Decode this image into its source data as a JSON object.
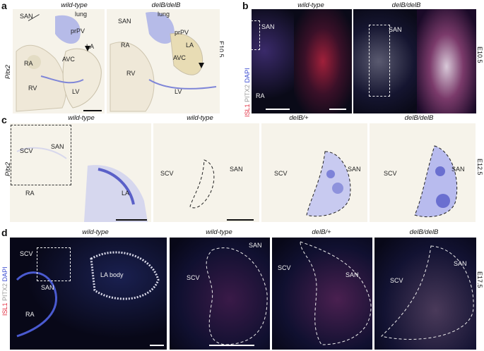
{
  "panels": {
    "a": {
      "letter": "a",
      "stain": "Pitx2",
      "stage": "E10.5",
      "left": {
        "genotype": "wild-type",
        "labels": [
          "SAN",
          "lung",
          "prPV",
          "LA",
          "RA",
          "AVC",
          "RV",
          "LV"
        ]
      },
      "right": {
        "genotype": "delB/delB",
        "labels": [
          "SAN",
          "lung",
          "prPV",
          "LA",
          "RA",
          "AVC",
          "RV",
          "LV"
        ]
      }
    },
    "b": {
      "letter": "b",
      "stage": "E10.5",
      "channels": {
        "c1": "ISL1",
        "c2": "PITX2",
        "c3": "DAPI"
      },
      "left": {
        "genotype": "wild-type",
        "labels": [
          "SAN",
          "RA"
        ]
      },
      "right": {
        "genotype": "delB/delB",
        "labels": [
          "SAN"
        ]
      }
    },
    "c": {
      "letter": "c",
      "stain": "Pitx2",
      "stage": "E12.5",
      "p1": {
        "genotype": "wild-type",
        "labels": [
          "SCV",
          "SAN",
          "RA",
          "LA"
        ]
      },
      "p2": {
        "genotype": "wild-type",
        "labels": [
          "SCV",
          "SAN"
        ]
      },
      "p3": {
        "genotype": "delB/+",
        "labels": [
          "SCV",
          "SAN"
        ]
      },
      "p4": {
        "genotype": "delB/delB",
        "labels": [
          "SCV",
          "SAN"
        ]
      }
    },
    "d": {
      "letter": "d",
      "stage": "E17.5",
      "channels": {
        "c1": "ISL1",
        "c2": "PITX2",
        "c3": "DAPI"
      },
      "p1": {
        "genotype": "wild-type",
        "labels": [
          "SCV",
          "SAN",
          "RA",
          "LA body"
        ]
      },
      "p2": {
        "genotype": "wild-type",
        "labels": [
          "SCV",
          "SAN"
        ]
      },
      "p3": {
        "genotype": "delB/+",
        "labels": [
          "SCV",
          "SAN"
        ]
      },
      "p4": {
        "genotype": "delB/delB",
        "labels": [
          "SCV",
          "SAN"
        ]
      }
    }
  },
  "colors": {
    "ish_blue": "#6a6fd0",
    "isl1_red": "#e0283c",
    "pitx2_white": "#eeeeee",
    "dapi_blue": "#3a4bd0"
  }
}
